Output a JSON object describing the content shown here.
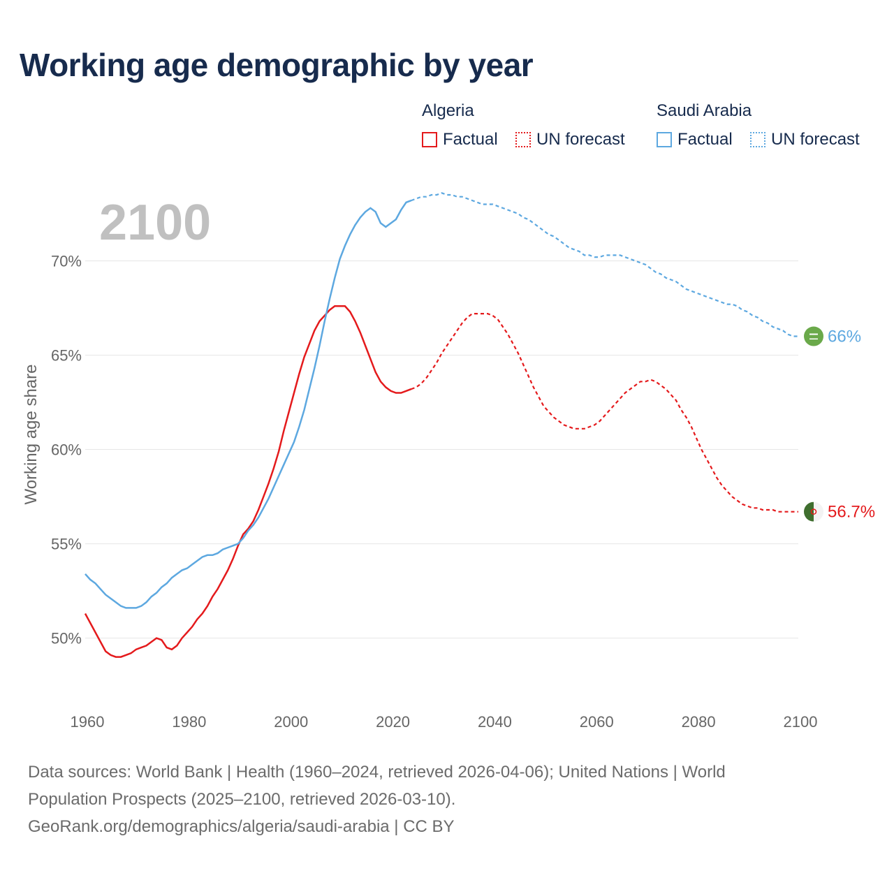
{
  "header": {
    "title": "Working age demographic by year"
  },
  "legend": {
    "groups": [
      {
        "name": "Algeria",
        "factual_label": "Factual",
        "forecast_label": "UN forecast",
        "color": "#e41a1c"
      },
      {
        "name": "Saudi Arabia",
        "factual_label": "Factual",
        "forecast_label": "UN forecast",
        "color": "#5da8e0"
      }
    ]
  },
  "footer": {
    "line1": "Data sources: World Bank | Health (1960–2024, retrieved 2026-04-06); United Nations | World",
    "line2": "Population Prospects (2025–2100, retrieved 2026-03-10).",
    "line3": "GeoRank.org/demographics/algeria/saudi-arabia | CC BY"
  },
  "chart_data": {
    "type": "line",
    "title": "Working age demographic by year",
    "current_year_label": "2100",
    "xlabel": "",
    "ylabel": "Working age share",
    "xlim": [
      1960,
      2100
    ],
    "ylim": [
      46.8,
      74.5
    ],
    "x_ticks": [
      1960,
      1980,
      2000,
      2020,
      2040,
      2060,
      2080,
      2100
    ],
    "y_ticks": [
      50,
      55,
      60,
      65,
      70
    ],
    "y_tick_labels": [
      "50%",
      "55%",
      "60%",
      "65%",
      "70%"
    ],
    "grid": true,
    "factual_end_year": 2024,
    "series": [
      {
        "name": "Algeria",
        "color": "#e41a1c",
        "end_label": "56.7%",
        "flag_icon": "algeria-flag-icon",
        "points": [
          [
            1960,
            51.3
          ],
          [
            1961,
            50.8
          ],
          [
            1962,
            50.3
          ],
          [
            1963,
            49.8
          ],
          [
            1964,
            49.3
          ],
          [
            1965,
            49.1
          ],
          [
            1966,
            49.0
          ],
          [
            1967,
            49.0
          ],
          [
            1968,
            49.1
          ],
          [
            1969,
            49.2
          ],
          [
            1970,
            49.4
          ],
          [
            1971,
            49.5
          ],
          [
            1972,
            49.6
          ],
          [
            1973,
            49.8
          ],
          [
            1974,
            50.0
          ],
          [
            1975,
            49.9
          ],
          [
            1976,
            49.5
          ],
          [
            1977,
            49.4
          ],
          [
            1978,
            49.6
          ],
          [
            1979,
            50.0
          ],
          [
            1980,
            50.3
          ],
          [
            1981,
            50.6
          ],
          [
            1982,
            51.0
          ],
          [
            1983,
            51.3
          ],
          [
            1984,
            51.7
          ],
          [
            1985,
            52.2
          ],
          [
            1986,
            52.6
          ],
          [
            1987,
            53.1
          ],
          [
            1988,
            53.6
          ],
          [
            1989,
            54.2
          ],
          [
            1990,
            54.9
          ],
          [
            1991,
            55.5
          ],
          [
            1992,
            55.8
          ],
          [
            1993,
            56.2
          ],
          [
            1994,
            56.8
          ],
          [
            1995,
            57.5
          ],
          [
            1996,
            58.2
          ],
          [
            1997,
            59.0
          ],
          [
            1998,
            59.9
          ],
          [
            1999,
            61.0
          ],
          [
            2000,
            62.0
          ],
          [
            2001,
            63.0
          ],
          [
            2002,
            64.0
          ],
          [
            2003,
            64.9
          ],
          [
            2004,
            65.6
          ],
          [
            2005,
            66.3
          ],
          [
            2006,
            66.8
          ],
          [
            2007,
            67.1
          ],
          [
            2008,
            67.4
          ],
          [
            2009,
            67.6
          ],
          [
            2010,
            67.6
          ],
          [
            2011,
            67.6
          ],
          [
            2012,
            67.3
          ],
          [
            2013,
            66.8
          ],
          [
            2014,
            66.2
          ],
          [
            2015,
            65.5
          ],
          [
            2016,
            64.8
          ],
          [
            2017,
            64.1
          ],
          [
            2018,
            63.6
          ],
          [
            2019,
            63.3
          ],
          [
            2020,
            63.1
          ],
          [
            2021,
            63.0
          ],
          [
            2022,
            63.0
          ],
          [
            2023,
            63.1
          ],
          [
            2024,
            63.2
          ],
          [
            2025,
            63.3
          ],
          [
            2026,
            63.5
          ],
          [
            2027,
            63.8
          ],
          [
            2028,
            64.2
          ],
          [
            2029,
            64.6
          ],
          [
            2030,
            65.1
          ],
          [
            2031,
            65.5
          ],
          [
            2032,
            65.9
          ],
          [
            2033,
            66.3
          ],
          [
            2034,
            66.7
          ],
          [
            2035,
            67.0
          ],
          [
            2036,
            67.2
          ],
          [
            2037,
            67.2
          ],
          [
            2038,
            67.2
          ],
          [
            2039,
            67.2
          ],
          [
            2040,
            67.1
          ],
          [
            2041,
            66.9
          ],
          [
            2042,
            66.5
          ],
          [
            2043,
            66.1
          ],
          [
            2044,
            65.6
          ],
          [
            2045,
            65.1
          ],
          [
            2046,
            64.5
          ],
          [
            2047,
            63.9
          ],
          [
            2048,
            63.3
          ],
          [
            2049,
            62.8
          ],
          [
            2050,
            62.3
          ],
          [
            2051,
            62.0
          ],
          [
            2052,
            61.7
          ],
          [
            2053,
            61.5
          ],
          [
            2054,
            61.3
          ],
          [
            2055,
            61.2
          ],
          [
            2056,
            61.1
          ],
          [
            2057,
            61.1
          ],
          [
            2058,
            61.1
          ],
          [
            2059,
            61.2
          ],
          [
            2060,
            61.3
          ],
          [
            2061,
            61.5
          ],
          [
            2062,
            61.8
          ],
          [
            2063,
            62.1
          ],
          [
            2064,
            62.4
          ],
          [
            2065,
            62.7
          ],
          [
            2066,
            63.0
          ],
          [
            2067,
            63.2
          ],
          [
            2068,
            63.4
          ],
          [
            2069,
            63.6
          ],
          [
            2070,
            63.6
          ],
          [
            2071,
            63.7
          ],
          [
            2072,
            63.6
          ],
          [
            2073,
            63.4
          ],
          [
            2074,
            63.2
          ],
          [
            2075,
            62.9
          ],
          [
            2076,
            62.6
          ],
          [
            2077,
            62.1
          ],
          [
            2078,
            61.7
          ],
          [
            2079,
            61.2
          ],
          [
            2080,
            60.6
          ],
          [
            2081,
            60.0
          ],
          [
            2082,
            59.5
          ],
          [
            2083,
            59.0
          ],
          [
            2084,
            58.5
          ],
          [
            2085,
            58.1
          ],
          [
            2086,
            57.8
          ],
          [
            2087,
            57.5
          ],
          [
            2088,
            57.3
          ],
          [
            2089,
            57.1
          ],
          [
            2090,
            57.0
          ],
          [
            2091,
            56.9
          ],
          [
            2092,
            56.9
          ],
          [
            2093,
            56.8
          ],
          [
            2094,
            56.8
          ],
          [
            2095,
            56.8
          ],
          [
            2096,
            56.7
          ],
          [
            2097,
            56.7
          ],
          [
            2098,
            56.7
          ],
          [
            2099,
            56.7
          ],
          [
            2100,
            56.7
          ]
        ]
      },
      {
        "name": "Saudi Arabia",
        "color": "#5da8e0",
        "end_label": "66%",
        "flag_icon": "saudi-arabia-flag-icon",
        "points": [
          [
            1960,
            53.4
          ],
          [
            1961,
            53.1
          ],
          [
            1962,
            52.9
          ],
          [
            1963,
            52.6
          ],
          [
            1964,
            52.3
          ],
          [
            1965,
            52.1
          ],
          [
            1966,
            51.9
          ],
          [
            1967,
            51.7
          ],
          [
            1968,
            51.6
          ],
          [
            1969,
            51.6
          ],
          [
            1970,
            51.6
          ],
          [
            1971,
            51.7
          ],
          [
            1972,
            51.9
          ],
          [
            1973,
            52.2
          ],
          [
            1974,
            52.4
          ],
          [
            1975,
            52.7
          ],
          [
            1976,
            52.9
          ],
          [
            1977,
            53.2
          ],
          [
            1978,
            53.4
          ],
          [
            1979,
            53.6
          ],
          [
            1980,
            53.7
          ],
          [
            1981,
            53.9
          ],
          [
            1982,
            54.1
          ],
          [
            1983,
            54.3
          ],
          [
            1984,
            54.4
          ],
          [
            1985,
            54.4
          ],
          [
            1986,
            54.5
          ],
          [
            1987,
            54.7
          ],
          [
            1988,
            54.8
          ],
          [
            1989,
            54.9
          ],
          [
            1990,
            55.0
          ],
          [
            1991,
            55.3
          ],
          [
            1992,
            55.7
          ],
          [
            1993,
            56.0
          ],
          [
            1994,
            56.4
          ],
          [
            1995,
            56.9
          ],
          [
            1996,
            57.4
          ],
          [
            1997,
            58.0
          ],
          [
            1998,
            58.6
          ],
          [
            1999,
            59.2
          ],
          [
            2000,
            59.8
          ],
          [
            2001,
            60.4
          ],
          [
            2002,
            61.2
          ],
          [
            2003,
            62.1
          ],
          [
            2004,
            63.2
          ],
          [
            2005,
            64.3
          ],
          [
            2006,
            65.5
          ],
          [
            2007,
            66.8
          ],
          [
            2008,
            68.0
          ],
          [
            2009,
            69.1
          ],
          [
            2010,
            70.1
          ],
          [
            2011,
            70.8
          ],
          [
            2012,
            71.4
          ],
          [
            2013,
            71.9
          ],
          [
            2014,
            72.3
          ],
          [
            2015,
            72.6
          ],
          [
            2016,
            72.8
          ],
          [
            2017,
            72.6
          ],
          [
            2018,
            72.0
          ],
          [
            2019,
            71.8
          ],
          [
            2020,
            72.0
          ],
          [
            2021,
            72.2
          ],
          [
            2022,
            72.7
          ],
          [
            2023,
            73.1
          ],
          [
            2024,
            73.2
          ],
          [
            2025,
            73.3
          ],
          [
            2026,
            73.4
          ],
          [
            2027,
            73.4
          ],
          [
            2028,
            73.5
          ],
          [
            2029,
            73.5
          ],
          [
            2030,
            73.6
          ],
          [
            2031,
            73.5
          ],
          [
            2032,
            73.5
          ],
          [
            2033,
            73.4
          ],
          [
            2034,
            73.4
          ],
          [
            2035,
            73.3
          ],
          [
            2036,
            73.2
          ],
          [
            2037,
            73.1
          ],
          [
            2038,
            73.0
          ],
          [
            2039,
            73.0
          ],
          [
            2040,
            73.0
          ],
          [
            2041,
            72.9
          ],
          [
            2042,
            72.8
          ],
          [
            2043,
            72.7
          ],
          [
            2044,
            72.6
          ],
          [
            2045,
            72.5
          ],
          [
            2046,
            72.3
          ],
          [
            2047,
            72.2
          ],
          [
            2048,
            72.0
          ],
          [
            2049,
            71.8
          ],
          [
            2050,
            71.6
          ],
          [
            2051,
            71.4
          ],
          [
            2052,
            71.3
          ],
          [
            2053,
            71.1
          ],
          [
            2054,
            70.9
          ],
          [
            2055,
            70.7
          ],
          [
            2056,
            70.6
          ],
          [
            2057,
            70.5
          ],
          [
            2058,
            70.3
          ],
          [
            2059,
            70.3
          ],
          [
            2060,
            70.2
          ],
          [
            2061,
            70.2
          ],
          [
            2062,
            70.3
          ],
          [
            2063,
            70.3
          ],
          [
            2064,
            70.3
          ],
          [
            2065,
            70.3
          ],
          [
            2066,
            70.2
          ],
          [
            2067,
            70.1
          ],
          [
            2068,
            70.0
          ],
          [
            2069,
            69.9
          ],
          [
            2070,
            69.8
          ],
          [
            2071,
            69.6
          ],
          [
            2072,
            69.4
          ],
          [
            2073,
            69.3
          ],
          [
            2074,
            69.1
          ],
          [
            2075,
            69.0
          ],
          [
            2076,
            68.9
          ],
          [
            2077,
            68.7
          ],
          [
            2078,
            68.5
          ],
          [
            2079,
            68.4
          ],
          [
            2080,
            68.3
          ],
          [
            2081,
            68.2
          ],
          [
            2082,
            68.1
          ],
          [
            2083,
            68.0
          ],
          [
            2084,
            67.9
          ],
          [
            2085,
            67.8
          ],
          [
            2086,
            67.7
          ],
          [
            2087,
            67.7
          ],
          [
            2088,
            67.6
          ],
          [
            2089,
            67.4
          ],
          [
            2090,
            67.3
          ],
          [
            2091,
            67.1
          ],
          [
            2092,
            67.0
          ],
          [
            2093,
            66.8
          ],
          [
            2094,
            66.7
          ],
          [
            2095,
            66.5
          ],
          [
            2096,
            66.4
          ],
          [
            2097,
            66.3
          ],
          [
            2098,
            66.1
          ],
          [
            2099,
            66.0
          ],
          [
            2100,
            66.0
          ]
        ]
      }
    ]
  }
}
